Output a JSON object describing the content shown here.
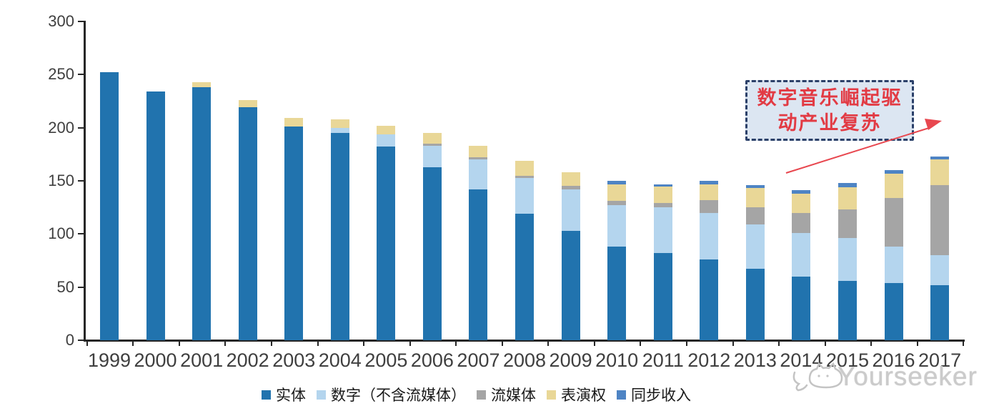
{
  "chart_data": {
    "type": "bar",
    "stacked": true,
    "title": "",
    "xlabel": "",
    "ylabel": "",
    "ylim": [
      0,
      300
    ],
    "ytick_interval": 50,
    "yticks": [
      "0",
      "50",
      "100",
      "150",
      "200",
      "250",
      "300"
    ],
    "grid": false,
    "legend_position": "bottom",
    "categories": [
      "1999",
      "2000",
      "2001",
      "2002",
      "2003",
      "2004",
      "2005",
      "2006",
      "2007",
      "2008",
      "2009",
      "2010",
      "2011",
      "2012",
      "2013",
      "2014",
      "2015",
      "2016",
      "2017"
    ],
    "series": [
      {
        "name": "实体",
        "color": "#2173ae",
        "values": [
          252,
          234,
          238,
          219,
          201,
          195,
          182,
          163,
          142,
          119,
          103,
          88,
          82,
          76,
          67,
          60,
          56,
          54,
          52
        ]
      },
      {
        "name": "数字（不含流媒体）",
        "color": "#b4d5ee",
        "values": [
          0,
          0,
          0,
          0,
          0,
          5,
          12,
          20,
          28,
          34,
          39,
          39,
          43,
          44,
          42,
          41,
          40,
          34,
          28
        ]
      },
      {
        "name": "流媒体",
        "color": "#a5a5a5",
        "values": [
          0,
          0,
          0,
          0,
          0,
          0,
          0,
          2,
          2,
          2,
          3,
          4,
          4,
          12,
          16,
          19,
          27,
          46,
          66
        ]
      },
      {
        "name": "表演权",
        "color": "#e9d797",
        "values": [
          0,
          0,
          5,
          7,
          8,
          8,
          8,
          10,
          11,
          14,
          13,
          16,
          16,
          15,
          18,
          18,
          21,
          23,
          24
        ]
      },
      {
        "name": "同步收入",
        "color": "#4e84c4",
        "values": [
          0,
          0,
          0,
          0,
          0,
          0,
          0,
          0,
          0,
          0,
          0,
          3,
          2,
          3,
          3,
          3,
          4,
          3,
          3
        ]
      }
    ]
  },
  "annotation": {
    "line1": "数字音乐崛起驱",
    "line2": "动产业复苏",
    "box_fill": "#dce6f2",
    "border_color": "#2b4069",
    "text_color": "#e23b44",
    "arrow_color": "#e8474f"
  },
  "watermark": {
    "text": "Yourseeker",
    "logo": "cat-face-with-speech-bubble-icon",
    "color": "#cbcbcb"
  }
}
